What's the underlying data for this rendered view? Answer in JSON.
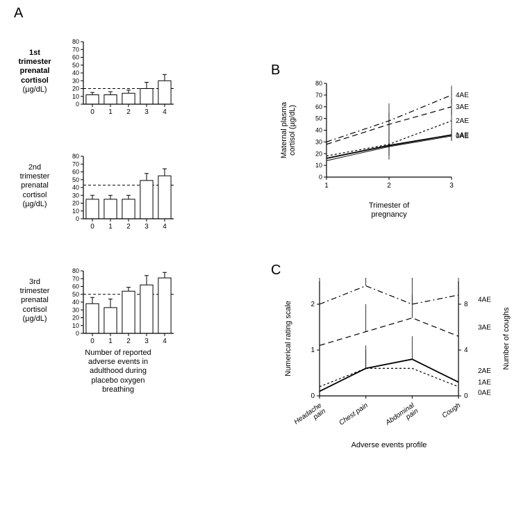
{
  "panelA": {
    "letter": "A",
    "xlabel": "Number of reported\nadverse events in\nadulthood during\nplacebo oxygen\nbreathing",
    "categories": [
      "0",
      "1",
      "2",
      "3",
      "4"
    ],
    "ylim": [
      0,
      80
    ],
    "yticks": [
      0,
      10,
      20,
      30,
      40,
      50,
      60,
      70,
      80
    ],
    "bar_fill": "#ffffff",
    "bar_stroke": "#000000",
    "axis_color": "#000000",
    "dash_color": "#000000",
    "charts": [
      {
        "ylabel": "1st\ntrimester\nprenatal\ncortisol\n(µg/dL)",
        "bold": true,
        "dashed_y": 20,
        "values": [
          12,
          12,
          14,
          20,
          30
        ],
        "errors": [
          3,
          4,
          4,
          8,
          8
        ]
      },
      {
        "ylabel": "2nd\ntrimester\nprenatal\ncortisol\n(µg/dL)",
        "bold": false,
        "dashed_y": 43,
        "values": [
          25,
          25,
          25,
          49,
          55
        ],
        "errors": [
          5,
          5,
          5,
          9,
          9
        ]
      },
      {
        "ylabel": "3rd\ntrimester\nprenatal\ncortisol\n(µg/dL)",
        "bold": false,
        "dashed_y": 50,
        "values": [
          38,
          33,
          54,
          62,
          71
        ],
        "errors": [
          8,
          11,
          5,
          12,
          7
        ]
      }
    ]
  },
  "panelB": {
    "letter": "B",
    "ylabel": "Maternal plasma\ncortisol (µg/dL)",
    "xlabel": "Trimester of\npregnancy",
    "xticks": [
      "1",
      "2",
      "3"
    ],
    "ylim": [
      0,
      80
    ],
    "yticks": [
      0,
      10,
      20,
      30,
      40,
      50,
      60,
      70,
      80
    ],
    "axis_color": "#000000",
    "series": [
      {
        "label": "4AE",
        "style": "dashdot",
        "width": 1.2,
        "y": [
          30,
          48,
          70
        ],
        "err": [
          30,
          15,
          8
        ]
      },
      {
        "label": "3AE",
        "style": "dash",
        "width": 1.2,
        "y": [
          28,
          45,
          60
        ],
        "err": [
          10,
          10,
          7
        ]
      },
      {
        "label": "2AE",
        "style": "shortdash",
        "width": 1.2,
        "y": [
          18,
          28,
          48
        ],
        "err": [
          8,
          10,
          10
        ]
      },
      {
        "label": "1AE",
        "style": "solid",
        "width": 1.8,
        "y": [
          16,
          27,
          36
        ],
        "err": [
          6,
          12,
          5
        ]
      },
      {
        "label": "0AE",
        "style": "solid",
        "width": 0.9,
        "y": [
          14,
          26,
          35
        ],
        "err": [
          5,
          8,
          4
        ]
      }
    ]
  },
  "panelC": {
    "letter": "C",
    "ylabel_left": "Numerical rating scale",
    "ylabel_right": "Number of coughs",
    "xlabel": "Adverse events profile",
    "categories": [
      "Headache\npain",
      "Chest pain",
      "Abdominal\npain",
      "Cough"
    ],
    "ylim_left": [
      0,
      2.5
    ],
    "yticks_left": [
      0,
      1,
      2
    ],
    "yticks_right": [
      0,
      4,
      8
    ],
    "axis_color": "#000000",
    "series": [
      {
        "label": "4AE",
        "style": "dashdot",
        "width": 1.2,
        "y": [
          2.0,
          2.4,
          2.0,
          2.2
        ],
        "err": [
          0.7,
          0.5,
          0.9,
          0.8
        ]
      },
      {
        "label": "3AE",
        "style": "dash",
        "width": 1.2,
        "y": [
          1.1,
          1.4,
          1.7,
          1.3
        ],
        "err": [
          0.6,
          0.6,
          0.5,
          0.5
        ]
      },
      {
        "label": "2AE",
        "style": "shortdash",
        "width": 1.2,
        "y": [
          0.2,
          0.6,
          0.6,
          0.2
        ],
        "err": [
          0.15,
          0.4,
          0.0,
          0.0
        ]
      },
      {
        "label": "1AE",
        "style": "solid",
        "width": 1.8,
        "y": [
          0.1,
          0.6,
          0.8,
          0.3
        ],
        "err": [
          0.0,
          0.5,
          0.5,
          0.5
        ]
      },
      {
        "label": "0AE",
        "style": "solid",
        "width": 0.9,
        "y": [
          0.0,
          0.0,
          0.0,
          0.0
        ],
        "err": [
          0.0,
          0.0,
          0.0,
          0.0
        ]
      }
    ]
  }
}
